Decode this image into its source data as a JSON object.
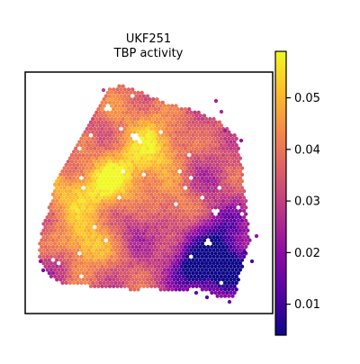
{
  "chart_data": {
    "type": "heatmap",
    "subtype": "spatial-hexagonal-spots",
    "title": "UKF251",
    "subtitle": "TBP activity",
    "xlabel": "",
    "ylabel": "",
    "colormap": "plasma",
    "colormap_stops": [
      "#0d0887",
      "#5302a3",
      "#8b0aa5",
      "#b83289",
      "#db5c68",
      "#f48849",
      "#febd2a",
      "#f0f921"
    ],
    "missing_spot_color": "#ffffff",
    "frame_color": "#000000",
    "colorbar": {
      "range": [
        0.004,
        0.059
      ],
      "ticks": [
        0.01,
        0.02,
        0.03,
        0.04,
        0.05
      ],
      "tick_labels": [
        "0.01",
        "0.02",
        "0.03",
        "0.04",
        "0.05"
      ],
      "position": "right"
    },
    "grid": false,
    "value_field": {
      "typical_range": [
        0.015,
        0.055
      ],
      "low_regions": "lower-right corner and scattered purple patches",
      "high_regions": "bright yellow patches across left and center"
    }
  }
}
